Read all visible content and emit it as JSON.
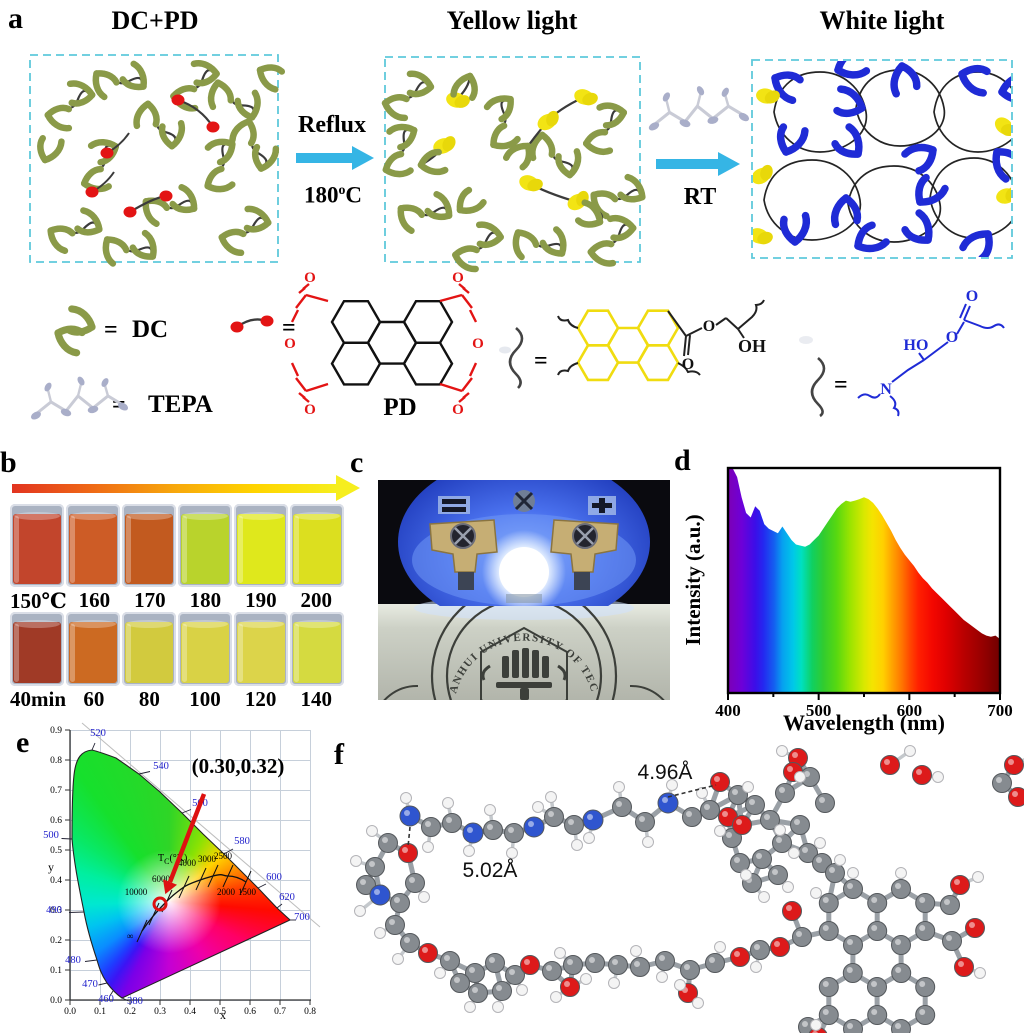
{
  "figure": {
    "panel_labels": {
      "a": "a",
      "b": "b",
      "c": "c",
      "d": "d",
      "e": "e",
      "f": "f"
    },
    "panel_a": {
      "titles": [
        "DC+PD",
        "Yellow light",
        "White light"
      ],
      "arrow1_top": "Reflux",
      "arrow1_temp": "180",
      "arrow1_temp_sup": "o",
      "arrow1_temp_unit": "C",
      "arrow2_label": "RT",
      "legend": {
        "eq": "=",
        "dc": "DC",
        "tepa": "TEPA",
        "pd": "PD",
        "oh": "OH",
        "ho": "HO",
        "n": "N",
        "o": "O"
      },
      "colors": {
        "dc_olive": "#8a9a48",
        "chain_dark": "#3b3b3b",
        "pd_red": "#e31414",
        "yellow": "#f2e414",
        "blue": "#1f2bd6",
        "arrow_cyan": "#35b5e5",
        "box_border": "#5fc9db",
        "tepa_gray": "#c9cbd6",
        "tepa_leaf": "#a9aec9"
      }
    },
    "panel_b": {
      "row1_labels": [
        "150℃",
        "160",
        "170",
        "180",
        "190",
        "200"
      ],
      "row1_colors": [
        "#c2452c",
        "#cd5c26",
        "#c25a1f",
        "#b9d32c",
        "#dfe81c",
        "#dcdf1f"
      ],
      "row2_labels": [
        "40min",
        "60",
        "80",
        "100",
        "120",
        "140"
      ],
      "row2_colors": [
        "#a03a26",
        "#cc6a22",
        "#d2ca3e",
        "#d9d245",
        "#dcd44a",
        "#d5da40"
      ]
    },
    "panel_c": {
      "seal_text": "ANHUI UNIVERSITY OF TECHNOLOGY"
    },
    "panel_f": {
      "distance_1": "4.96Å",
      "distance_2": "5.02Å",
      "atom_colors": {
        "C": "#868b90",
        "H": "#f4f4f4",
        "O": "#dd1a1a",
        "N": "#2f55cf"
      }
    }
  },
  "chart_data": [
    {
      "type": "area",
      "xlabel": "Wavelength (nm)",
      "ylabel": "Intensity (a.u.)",
      "xticks": [
        "400",
        "500",
        "600",
        "700"
      ],
      "xlim": [
        400,
        700
      ],
      "fill": "spectral-rainbow",
      "x": [
        400,
        405,
        410,
        415,
        420,
        425,
        430,
        435,
        440,
        445,
        450,
        455,
        460,
        465,
        470,
        475,
        480,
        485,
        490,
        495,
        500,
        505,
        510,
        515,
        520,
        525,
        530,
        535,
        540,
        545,
        550,
        555,
        560,
        565,
        570,
        575,
        580,
        585,
        590,
        595,
        600,
        605,
        610,
        615,
        620,
        625,
        630,
        635,
        640,
        645,
        650,
        655,
        660,
        665,
        670,
        675,
        680,
        685,
        690,
        695,
        700
      ],
      "y": [
        1.0,
        1.0,
        0.96,
        0.87,
        0.8,
        0.78,
        0.83,
        0.81,
        0.75,
        0.73,
        0.72,
        0.71,
        0.74,
        0.71,
        0.68,
        0.66,
        0.655,
        0.65,
        0.66,
        0.68,
        0.7,
        0.73,
        0.76,
        0.79,
        0.82,
        0.84,
        0.855,
        0.85,
        0.855,
        0.862,
        0.87,
        0.862,
        0.845,
        0.82,
        0.79,
        0.755,
        0.72,
        0.68,
        0.645,
        0.615,
        0.59,
        0.565,
        0.535,
        0.51,
        0.49,
        0.465,
        0.445,
        0.425,
        0.405,
        0.385,
        0.365,
        0.345,
        0.325,
        0.31,
        0.295,
        0.28,
        0.265,
        0.255,
        0.25,
        0.255,
        0.24
      ]
    },
    {
      "type": "scatter",
      "subtype": "cie-1931-chromaticity",
      "xlabel": "x",
      "ylabel": "y",
      "xticks": [
        "0.0",
        "0.1",
        "0.2",
        "0.3",
        "0.4",
        "0.5",
        "0.6",
        "0.7",
        "0.8"
      ],
      "yticks": [
        "0.0",
        "0.1",
        "0.2",
        "0.3",
        "0.4",
        "0.5",
        "0.6",
        "0.7",
        "0.8",
        "0.9"
      ],
      "xlim": [
        0,
        0.8
      ],
      "ylim": [
        0,
        0.9
      ],
      "point": {
        "x": 0.3,
        "y": 0.32
      },
      "annotation": "(0.30,0.32)",
      "wavelength_labels": [
        "380",
        "460",
        "470",
        "480",
        "490",
        "500",
        "520",
        "540",
        "560",
        "580",
        "600",
        "620",
        "700"
      ],
      "planckian_labels": [
        "∞",
        "10000",
        "6000",
        "4000",
        "3000",
        "2500",
        "2000",
        "1500"
      ],
      "tc_main": "T",
      "tc_sub": "C",
      "tc_rest": "(°K)",
      "grid": true
    }
  ]
}
